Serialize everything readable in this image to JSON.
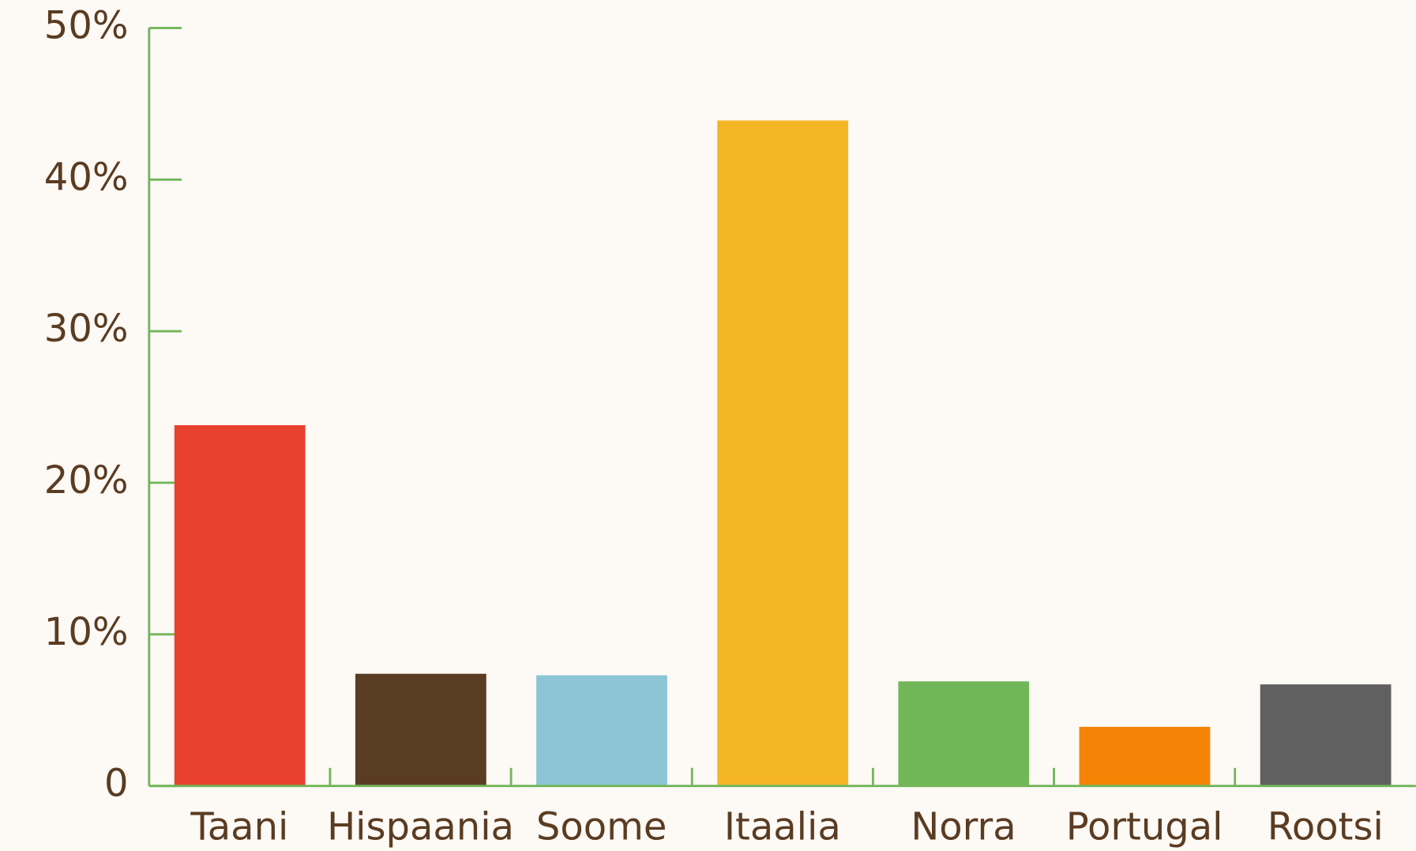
{
  "chart_data": {
    "type": "bar",
    "categories": [
      "Taani",
      "Hispaania",
      "Soome",
      "Itaalia",
      "Norra",
      "Portugal",
      "Rootsi"
    ],
    "values": [
      23.8,
      7.4,
      7.3,
      43.9,
      6.9,
      3.9,
      6.7
    ],
    "colors": [
      "#e8412e",
      "#5a3c22",
      "#8cc5d5",
      "#f5b626",
      "#72b65a",
      "#f58406",
      "#606060"
    ],
    "ylim": [
      0,
      50
    ],
    "yticks": [
      0,
      {
        "value": 10,
        "label": "10%"
      },
      {
        "value": 20,
        "label": "20%"
      },
      {
        "value": 30,
        "label": "30%"
      },
      {
        "value": 40,
        "label": "40%"
      },
      {
        "value": 50,
        "label": "50%"
      }
    ],
    "grid": false
  }
}
